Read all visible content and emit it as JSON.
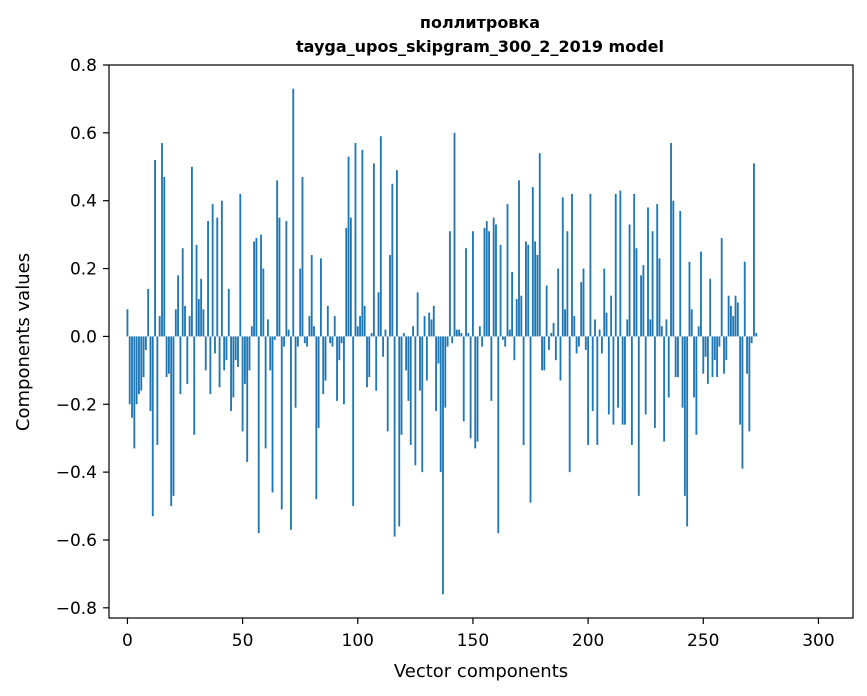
{
  "chart_data": {
    "type": "bar",
    "title_line1": "поллитровка",
    "title_line2": "tayga_upos_skipgram_300_2_2019 model",
    "xlabel": "Vector components",
    "ylabel": "Components values",
    "xlim": [
      -8,
      315
    ],
    "ylim": [
      -0.83,
      0.8
    ],
    "xticks": [
      0,
      50,
      100,
      150,
      200,
      250,
      300
    ],
    "xtick_labels": [
      "0",
      "50",
      "100",
      "150",
      "200",
      "250",
      "300"
    ],
    "yticks": [
      0.8,
      0.6,
      0.4,
      0.2,
      0.0,
      -0.2,
      -0.4,
      -0.6,
      -0.8
    ],
    "ytick_labels": [
      "0.8",
      "0.6",
      "0.4",
      "0.2",
      "0.0",
      "−0.2",
      "−0.4",
      "−0.6",
      "−0.8"
    ],
    "grid": false,
    "bar_color": "#1f77b4",
    "x_start": 0,
    "values": [
      0.08,
      -0.2,
      -0.24,
      -0.33,
      -0.2,
      -0.17,
      -0.16,
      -0.12,
      -0.04,
      0.14,
      -0.22,
      -0.53,
      0.52,
      -0.32,
      0.06,
      0.57,
      0.47,
      -0.12,
      -0.11,
      -0.5,
      -0.47,
      0.08,
      0.18,
      -0.17,
      0.26,
      0.09,
      -0.14,
      0.06,
      0.5,
      -0.29,
      0.27,
      0.11,
      0.17,
      0.08,
      -0.1,
      0.34,
      -0.17,
      0.39,
      -0.05,
      0.35,
      -0.15,
      0.4,
      -0.1,
      -0.07,
      0.14,
      -0.22,
      -0.18,
      -0.07,
      -0.09,
      0.42,
      -0.28,
      -0.14,
      -0.37,
      -0.1,
      0.03,
      0.28,
      0.29,
      -0.58,
      0.3,
      0.2,
      -0.33,
      0.05,
      -0.1,
      -0.46,
      -0.01,
      0.46,
      0.35,
      -0.51,
      -0.03,
      0.34,
      0.02,
      -0.57,
      0.73,
      -0.21,
      -0.03,
      0.2,
      0.47,
      -0.02,
      -0.03,
      0.06,
      0.24,
      0.03,
      -0.48,
      -0.27,
      0.23,
      -0.17,
      -0.13,
      0.09,
      -0.02,
      -0.03,
      0.06,
      -0.19,
      -0.07,
      -0.02,
      -0.2,
      0.32,
      0.53,
      0.35,
      -0.5,
      0.57,
      0.03,
      0.06,
      0.55,
      0.09,
      -0.15,
      -0.12,
      0.01,
      0.51,
      -0.16,
      0.13,
      0.59,
      -0.06,
      0.02,
      -0.28,
      0.24,
      0.45,
      -0.59,
      0.49,
      -0.56,
      -0.29,
      0.01,
      -0.1,
      -0.19,
      -0.32,
      0.03,
      -0.38,
      0.13,
      -0.16,
      -0.4,
      0.06,
      -0.13,
      0.07,
      0.05,
      0.09,
      -0.22,
      -0.08,
      -0.4,
      -0.76,
      -0.21,
      -0.03,
      0.31,
      -0.02,
      0.6,
      0.02,
      0.02,
      0.01,
      -0.25,
      0.26,
      0.01,
      -0.3,
      0.31,
      -0.33,
      -0.31,
      0.03,
      -0.03,
      0.32,
      0.34,
      0.31,
      -0.19,
      0.35,
      0.33,
      -0.58,
      0.27,
      -0.01,
      -0.03,
      0.39,
      0.02,
      0.19,
      -0.07,
      0.11,
      0.46,
      0.12,
      -0.32,
      0.28,
      0.27,
      -0.49,
      0.44,
      0.28,
      0.24,
      0.54,
      -0.1,
      -0.1,
      0.15,
      -0.04,
      0.01,
      0.04,
      -0.07,
      0.2,
      -0.13,
      0.41,
      0.08,
      0.31,
      -0.4,
      0.42,
      0.06,
      -0.05,
      -0.03,
      0.16,
      0.2,
      -0.04,
      -0.32,
      0.42,
      -0.22,
      0.05,
      -0.32,
      0.02,
      -0.05,
      0.2,
      0.07,
      -0.23,
      0.12,
      -0.26,
      0.42,
      -0.21,
      0.43,
      -0.26,
      -0.26,
      0.05,
      0.33,
      -0.32,
      0.42,
      0.26,
      -0.47,
      0.18,
      0.21,
      -0.23,
      0.38,
      0.05,
      0.31,
      -0.27,
      0.39,
      0.23,
      0.03,
      -0.31,
      0.05,
      -0.18,
      0.57,
      0.4,
      -0.12,
      -0.12,
      0.37,
      -0.21,
      -0.47,
      -0.56,
      0.22,
      0.08,
      -0.18,
      -0.29,
      0.03,
      0.25,
      -0.11,
      -0.06,
      -0.14,
      0.17,
      -0.12,
      -0.07,
      -0.12,
      -0.03,
      0.29,
      -0.11,
      -0.07,
      0.12,
      0.09,
      0.06,
      0.12,
      0.1,
      -0.26,
      -0.39,
      0.22,
      -0.11,
      -0.28,
      -0.02,
      0.51,
      0.01
    ]
  }
}
